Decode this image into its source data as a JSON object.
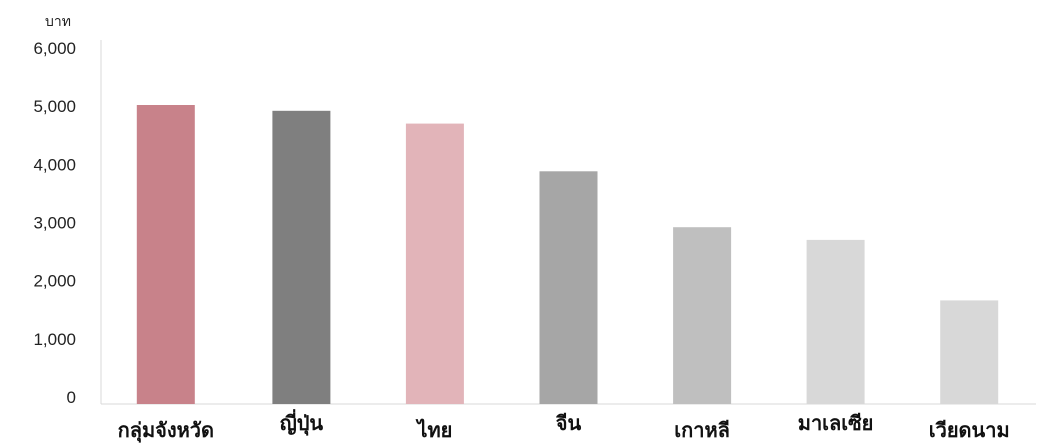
{
  "chart_data": {
    "type": "bar",
    "title": "",
    "xlabel": "",
    "ylabel": "บาท",
    "categories": [
      "กลุ่มจังหวัด",
      "ญี่ปุ่น",
      "ไทย",
      "จีน",
      "เกาหลี",
      "มาเลเซีย",
      "เวียดนาม"
    ],
    "values": [
      5020,
      4920,
      4700,
      3880,
      2920,
      2700,
      1660
    ],
    "bar_colors": [
      "#c8828a",
      "#7f7f7f",
      "#e2b4b9",
      "#a6a6a6",
      "#bfbfbf",
      "#d8d8d8",
      "#d8d8d8"
    ],
    "ylim": [
      0,
      6000
    ],
    "yticks": [
      0,
      1000,
      2000,
      3000,
      4000,
      5000,
      6000
    ],
    "ytick_labels": [
      "0",
      "1,000",
      "2,000",
      "3,000",
      "4,000",
      "5,000",
      "6,000"
    ],
    "grid": false,
    "legend": "none"
  }
}
